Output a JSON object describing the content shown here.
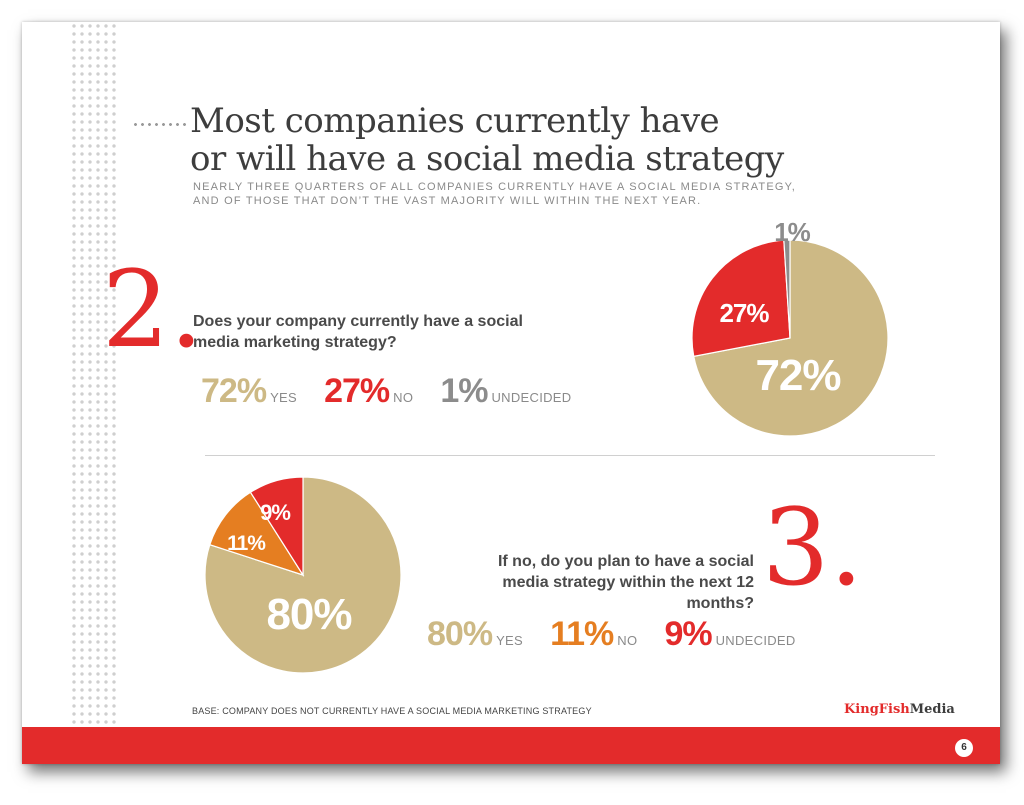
{
  "header": {
    "title_line1": "Most companies currently have",
    "title_line2": "or will have a social media strategy",
    "subtitle_line1": "NEARLY THREE QUARTERS OF ALL COMPANIES CURRENTLY HAVE A SOCIAL MEDIA STRATEGY,",
    "subtitle_line2": "AND OF THOSE THAT DON’T THE VAST MAJORITY WILL WITHIN THE NEXT YEAR."
  },
  "q2": {
    "number": "2.",
    "question_line1": "Does your company currently have a social",
    "question_line2": "media marketing strategy?",
    "answers": [
      {
        "pct": "72%",
        "label": "YES"
      },
      {
        "pct": "27%",
        "label": "NO"
      },
      {
        "pct": "1%",
        "label": "UNDECIDED"
      }
    ]
  },
  "q3": {
    "number": "3.",
    "question_line1": "If no, do you plan to have a social",
    "question_line2": "media strategy within the next 12 months?",
    "answers": [
      {
        "pct": "80%",
        "label": "YES"
      },
      {
        "pct": "11%",
        "label": "NO"
      },
      {
        "pct": "9%",
        "label": "UNDECIDED"
      }
    ]
  },
  "footer": {
    "base_note": "BASE: COMPANY DOES NOT CURRENTLY HAVE A SOCIAL MEDIA MARKETING STRATEGY",
    "brand_part1": "KingFish",
    "brand_part2": "Media",
    "page_number": "6"
  },
  "colors": {
    "yes": "#cdb985",
    "no": "#e32b2b",
    "undecided_q2": "#8c8c8c",
    "no_q3": "#e57e21",
    "undecided_q3": "#e32b2b",
    "accent": "#e32b2b"
  },
  "chart_data": [
    {
      "type": "pie",
      "categories": [
        "YES",
        "NO",
        "UNDECIDED"
      ],
      "values": [
        72,
        27,
        1
      ],
      "labels": [
        "72%",
        "27%",
        "1%"
      ],
      "colors": [
        "#cdb985",
        "#e32b2b",
        "#8c8c8c"
      ]
    },
    {
      "type": "pie",
      "categories": [
        "YES",
        "NO",
        "UNDECIDED"
      ],
      "values": [
        80,
        11,
        9
      ],
      "labels": [
        "80%",
        "11%",
        "9%"
      ],
      "colors": [
        "#cdb985",
        "#e57e21",
        "#e32b2b"
      ]
    }
  ]
}
